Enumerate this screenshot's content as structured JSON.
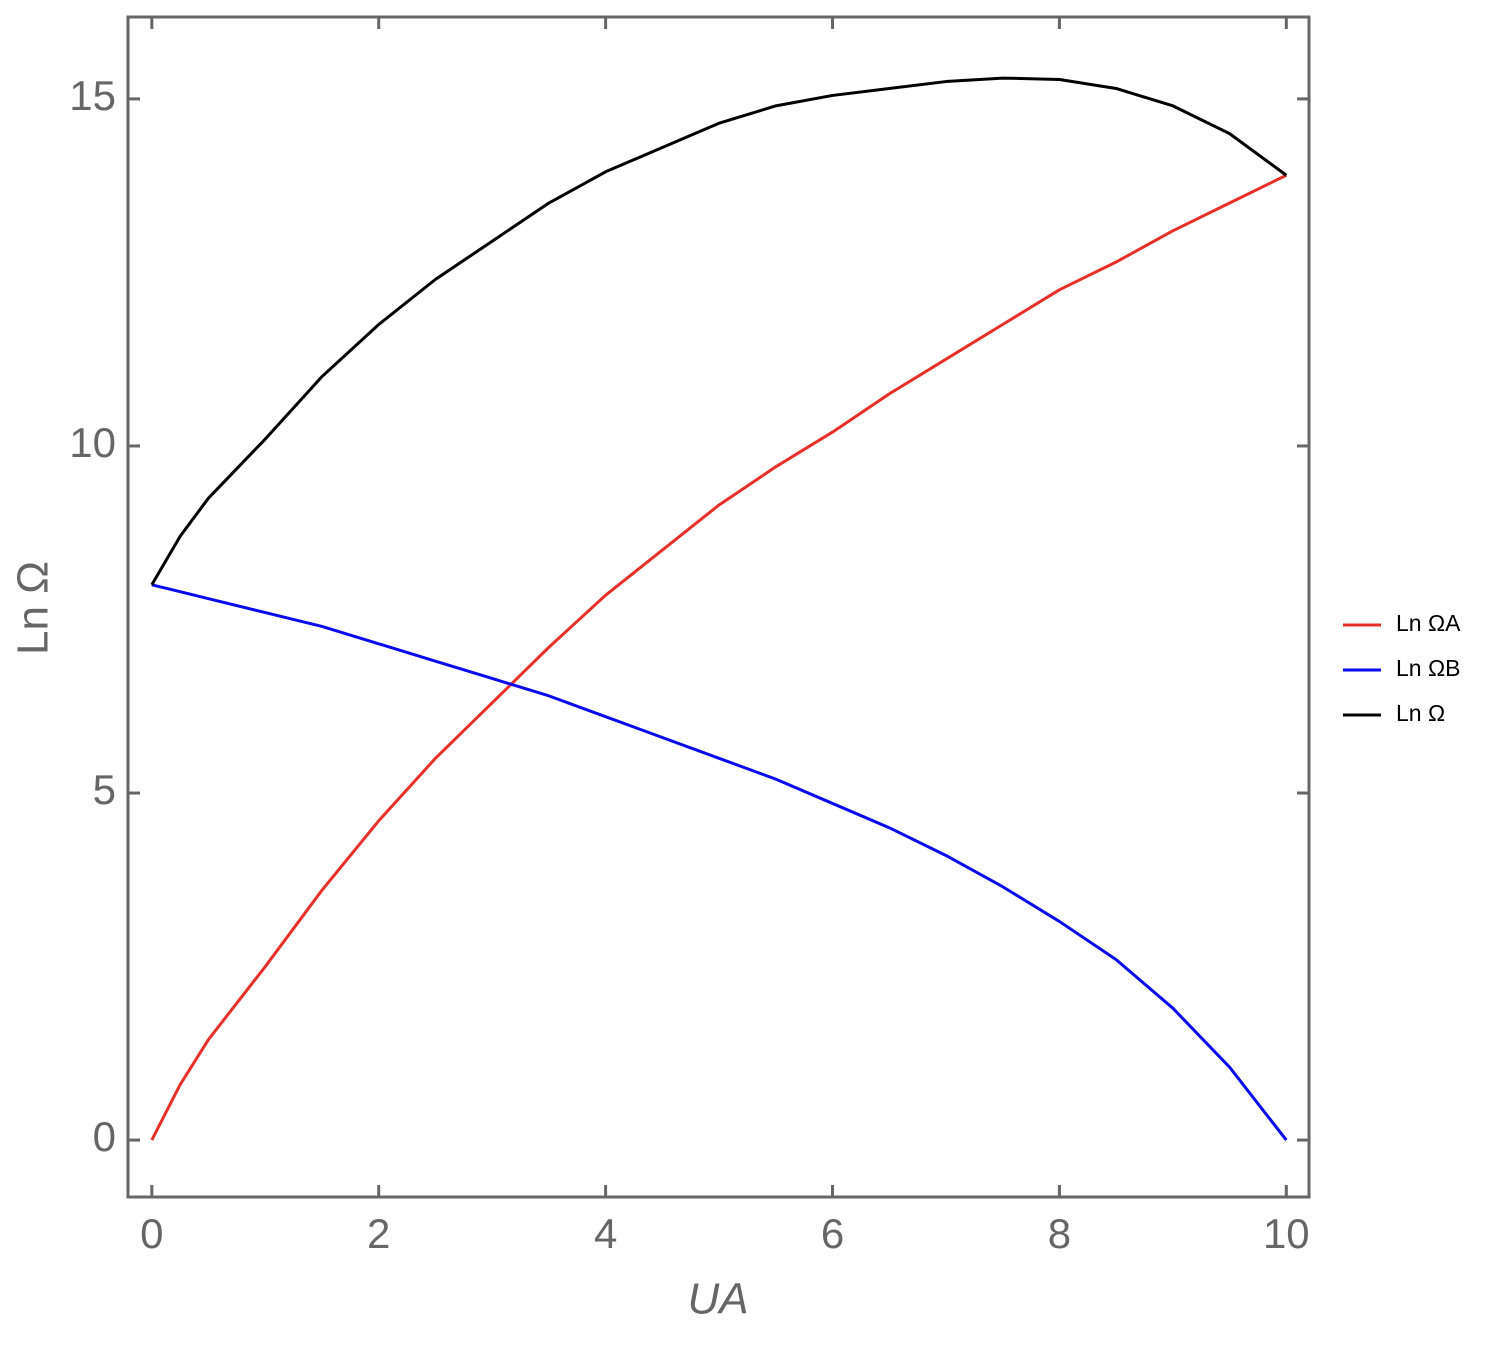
{
  "chart_data": {
    "type": "line",
    "x_label": "UA",
    "y_label": "Ln Ω",
    "x": [
      0,
      0.25,
      0.5,
      1,
      1.5,
      2,
      2.5,
      3,
      3.5,
      4,
      4.5,
      5,
      5.5,
      6,
      6.5,
      7,
      7.5,
      8,
      8.5,
      9,
      9.5,
      10
    ],
    "series": [
      {
        "name": "Ln ΩA",
        "color": "#e8302a",
        "values": [
          0,
          0.8,
          1.45,
          2.5,
          3.6,
          4.6,
          5.5,
          6.3,
          7.1,
          7.85,
          8.5,
          9.15,
          9.7,
          10.2,
          10.75,
          11.25,
          11.75,
          12.25,
          12.65,
          13.1,
          13.5,
          13.9
        ]
      },
      {
        "name": "Ln ΩB",
        "color": "#0a0aee",
        "values": [
          8.0,
          7.9,
          7.8,
          7.6,
          7.4,
          7.15,
          6.9,
          6.65,
          6.4,
          6.1,
          5.8,
          5.5,
          5.2,
          4.85,
          4.5,
          4.1,
          3.65,
          3.15,
          2.6,
          1.9,
          1.05,
          0
        ]
      },
      {
        "name": "Ln Ω",
        "color": "#000000",
        "values": [
          8.0,
          8.7,
          9.25,
          10.1,
          11.0,
          11.75,
          12.4,
          12.95,
          13.5,
          13.95,
          14.3,
          14.65,
          14.9,
          15.05,
          15.15,
          15.25,
          15.3,
          15.28,
          15.15,
          14.9,
          14.5,
          13.9
        ]
      }
    ],
    "xlim": [
      -0.21,
      10.2
    ],
    "ylim": [
      -0.82,
      16.18
    ],
    "xticks": [
      0,
      2,
      4,
      6,
      8,
      10
    ],
    "yticks": [
      0,
      5,
      10,
      15
    ],
    "legend": "right"
  }
}
